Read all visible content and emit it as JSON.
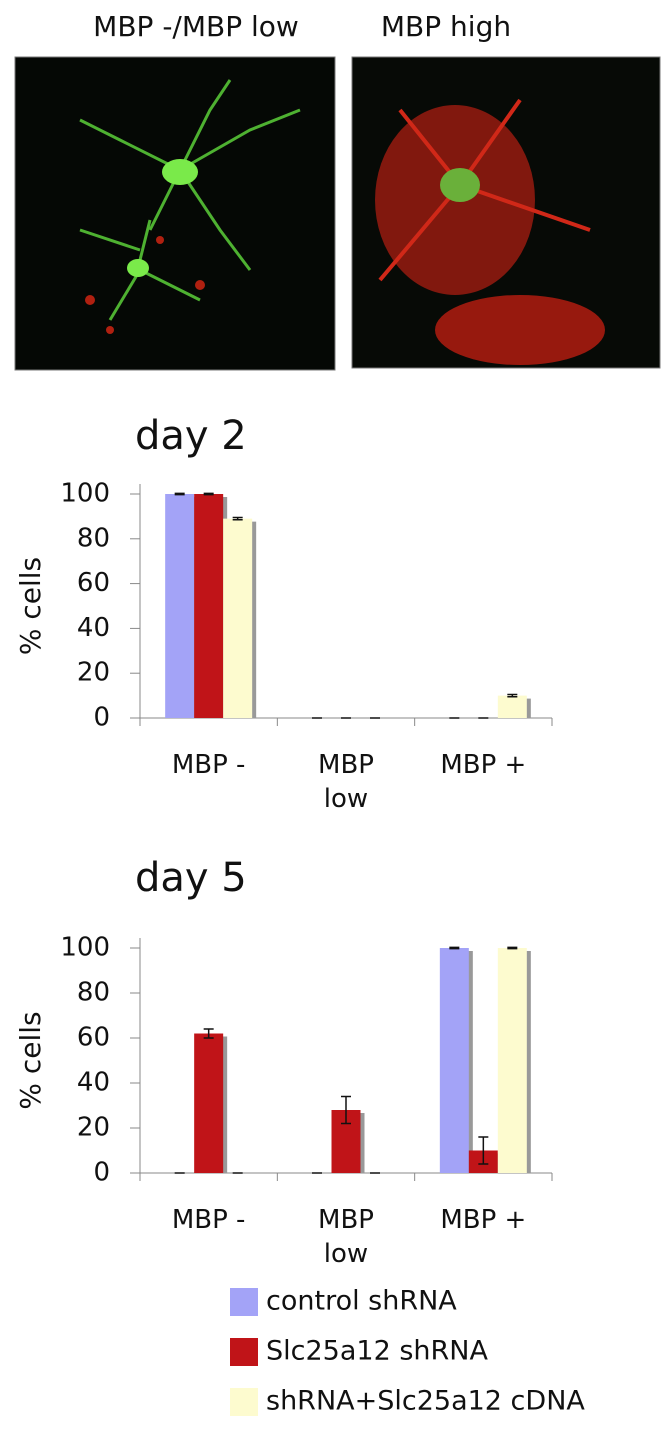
{
  "panel_labels": [
    "MBP -/MBP low",
    "MBP high"
  ],
  "chart_data": [
    {
      "type": "bar",
      "title": "day 2",
      "y_label": "% cells",
      "categories": [
        "MBP -",
        "MBP\nlow",
        "MBP +"
      ],
      "series": [
        {
          "name": "control shRNA",
          "color": "#a3a3f7",
          "values": [
            100,
            0,
            0
          ],
          "errors": [
            0.3,
            0,
            0
          ]
        },
        {
          "name": "Slc25a12 shRNA",
          "color": "#c01418",
          "values": [
            100,
            0,
            0
          ],
          "errors": [
            0.3,
            0,
            0
          ]
        },
        {
          "name": "shRNA+Slc25a12 cDNA",
          "color": "#fdfbcf",
          "values": [
            89,
            0,
            10
          ],
          "errors": [
            0.5,
            0,
            0.5
          ]
        }
      ],
      "ylim": [
        0,
        100
      ],
      "yticks": [
        0,
        20,
        40,
        60,
        80,
        100
      ]
    },
    {
      "type": "bar",
      "title": "day 5",
      "y_label": "% cells",
      "categories": [
        "MBP -",
        "MBP\nlow",
        "MBP +"
      ],
      "series": [
        {
          "color": "#a3a3f7",
          "values": [
            0,
            0,
            100
          ],
          "errors": [
            0,
            0,
            0.3
          ]
        },
        {
          "color": "#c01418",
          "values": [
            62,
            28,
            10
          ],
          "errors": [
            2,
            6,
            6
          ]
        },
        {
          "color": "#fdfbcf",
          "values": [
            0,
            0,
            100
          ],
          "errors": [
            0,
            0,
            0.3
          ]
        }
      ],
      "ylim": [
        0,
        100
      ],
      "yticks": [
        0,
        20,
        40,
        60,
        80,
        100
      ]
    }
  ]
}
